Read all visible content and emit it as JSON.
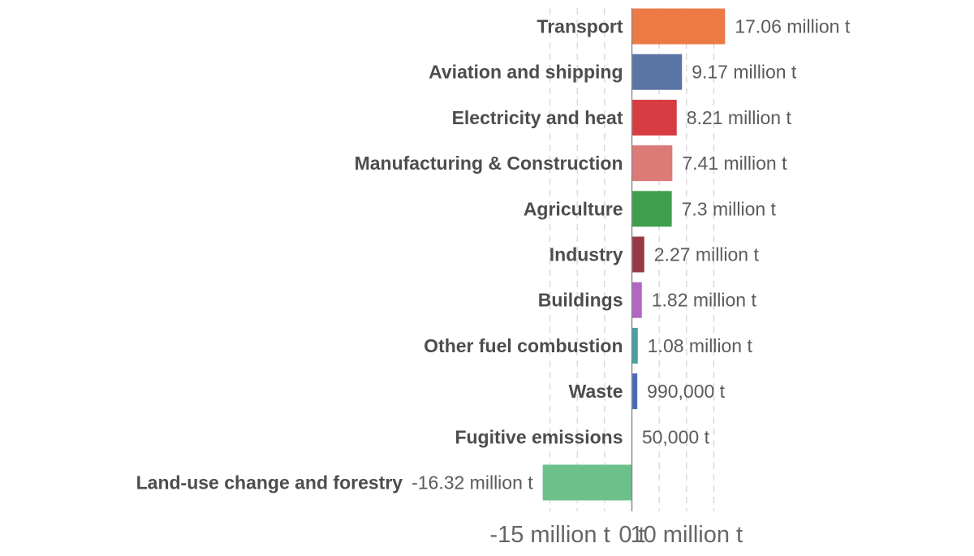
{
  "chart_data": {
    "type": "bar",
    "orientation": "horizontal",
    "unit": "t",
    "categories": [
      "Transport",
      "Aviation and shipping",
      "Electricity and heat",
      "Manufacturing & Construction",
      "Agriculture",
      "Industry",
      "Buildings",
      "Other fuel combustion",
      "Waste",
      "Fugitive emissions",
      "Land-use change and forestry"
    ],
    "values": [
      17060000,
      9170000,
      8210000,
      7410000,
      7300000,
      2270000,
      1820000,
      1080000,
      990000,
      50000,
      -16320000
    ],
    "value_labels": [
      "17.06 million t",
      "9.17 million t",
      "8.21 million t",
      "7.41 million t",
      "7.3 million t",
      "2.27 million t",
      "1.82 million t",
      "1.08 million t",
      "990,000 t",
      "50,000 t",
      "-16.32 million t"
    ],
    "colors": [
      "#ec7a45",
      "#5b74a6",
      "#d63c42",
      "#db7a76",
      "#3e9f4e",
      "#9a3946",
      "#b167c3",
      "#43a2a2",
      "#4a6cb8",
      "#bdbdbd",
      "#6cc08a"
    ],
    "xlim": [
      -20000000,
      20000000
    ],
    "xticks": [
      {
        "value": -15000000,
        "label": "-15 million t"
      },
      {
        "value": 0,
        "label": "0 t"
      },
      {
        "value": 10000000,
        "label": "10 million t"
      }
    ],
    "gridlines": [
      -15000000,
      -10000000,
      -5000000,
      0,
      5000000,
      10000000,
      15000000
    ],
    "grid": true,
    "title": "",
    "xlabel": "",
    "ylabel": ""
  }
}
